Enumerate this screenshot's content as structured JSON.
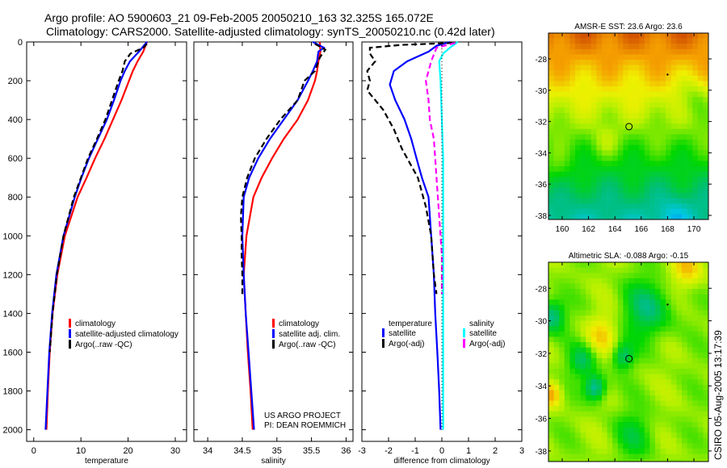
{
  "title_line1": "Argo profile: AO 5900603_21 09-Feb-2005 20050210_163 32.325S 165.072E",
  "title_line2": "Climatology: CARS2000. Satellite-adjusted climatology: synTS_20050210.nc (0.42d later)",
  "side_label": "CSIRO 05-Aug-2005 13:17:39",
  "colors": {
    "climatology": "#ff0000",
    "satellite": "#0000ff",
    "argo": "#000000",
    "sal_satellite": "#00ffff",
    "sal_argo": "#ff00ff"
  },
  "chart_data": [
    {
      "type": "line",
      "xlabel": "temperature",
      "xlim": [
        -1.5,
        32.4
      ],
      "ylim": [
        0,
        2060
      ],
      "y_reversed": true,
      "xticks": [
        "0",
        "10",
        "20",
        "30"
      ],
      "xtick_values": [
        0,
        10,
        20,
        30
      ],
      "yticks": [
        "0",
        "200",
        "400",
        "600",
        "800",
        "1000",
        "1200",
        "1400",
        "1600",
        "1800",
        "2000"
      ],
      "ytick_values": [
        0,
        200,
        400,
        600,
        800,
        1000,
        1200,
        1400,
        1600,
        1800,
        2000
      ],
      "legend": [
        "climatology",
        "satellite-adjusted climatology",
        "Argo(..raw -QC)"
      ],
      "series": [
        {
          "name": "climatology",
          "style": "solid",
          "color": "#ff0000",
          "depth": [
            0,
            50,
            100,
            150,
            200,
            300,
            400,
            500,
            600,
            700,
            800,
            1000,
            1200,
            1400,
            1600,
            1800,
            2000
          ],
          "values": [
            24,
            23.2,
            22,
            21,
            20.2,
            18.6,
            16.8,
            15,
            13,
            11.2,
            9.3,
            6.6,
            5,
            4,
            3.4,
            3,
            2.7
          ]
        },
        {
          "name": "satellite-adjusted climatology",
          "style": "solid",
          "color": "#0000ff",
          "depth": [
            0,
            50,
            100,
            150,
            200,
            300,
            400,
            500,
            600,
            700,
            800,
            1000,
            1200,
            1400,
            1600,
            1800,
            2000
          ],
          "values": [
            24,
            22.3,
            20.4,
            19.3,
            18.4,
            17,
            15.5,
            13.6,
            11.7,
            10.1,
            8.7,
            6.3,
            4.8,
            3.9,
            3.3,
            2.9,
            2.5
          ]
        },
        {
          "name": "Argo(..raw -QC)",
          "style": "dashed",
          "color": "#000000",
          "depth": [
            10,
            30,
            60,
            100,
            150,
            200,
            300,
            400,
            500,
            600,
            700,
            800,
            1000,
            1200,
            1400,
            1600
          ],
          "values": [
            24,
            23.2,
            20.5,
            19.3,
            18.8,
            18,
            16.6,
            15.2,
            13.4,
            11.5,
            10,
            8.5,
            6.3,
            4.9,
            4,
            3.4
          ]
        }
      ]
    },
    {
      "type": "line",
      "xlabel": "salinity",
      "xlim": [
        33.8,
        36.1
      ],
      "ylim": [
        0,
        2060
      ],
      "y_reversed": true,
      "xticks": [
        "34",
        "34.5",
        "35",
        "35.5",
        "36"
      ],
      "xtick_values": [
        34,
        34.5,
        35,
        35.5,
        36
      ],
      "legend": [
        "climatology",
        "satellite adj. clim.",
        "Argo(..raw -QC)"
      ],
      "annotation": [
        "US ARGO PROJECT",
        "PI: DEAN ROEMMICH"
      ],
      "series": [
        {
          "name": "climatology",
          "style": "solid",
          "color": "#ff0000",
          "depth": [
            0,
            50,
            100,
            150,
            200,
            300,
            400,
            500,
            600,
            700,
            800,
            1000,
            1200,
            1400,
            1600,
            1800,
            2000
          ],
          "values": [
            35.62,
            35.63,
            35.6,
            35.58,
            35.55,
            35.45,
            35.3,
            35.1,
            34.93,
            34.78,
            34.66,
            34.56,
            34.52,
            34.55,
            34.58,
            34.62,
            34.65
          ]
        },
        {
          "name": "satellite adj. clim.",
          "style": "solid",
          "color": "#0000ff",
          "depth": [
            0,
            30,
            50,
            100,
            150,
            200,
            300,
            400,
            500,
            600,
            700,
            800,
            1000,
            1200,
            1400,
            1600,
            1800,
            2000
          ],
          "values": [
            35.52,
            35.68,
            35.6,
            35.58,
            35.52,
            35.45,
            35.3,
            35.1,
            34.9,
            34.73,
            34.6,
            34.52,
            34.5,
            34.52,
            34.55,
            34.59,
            34.63,
            34.67
          ]
        },
        {
          "name": "Argo(..raw -QC)",
          "style": "dashed",
          "color": "#000000",
          "depth": [
            10,
            40,
            80,
            150,
            200,
            300,
            400,
            500,
            600,
            700,
            800,
            900,
            1000,
            1100,
            1200,
            1300
          ],
          "values": [
            35.55,
            35.7,
            35.62,
            35.55,
            35.4,
            35.3,
            35.05,
            34.85,
            34.68,
            34.57,
            34.5,
            34.48,
            34.49,
            34.49,
            34.5,
            34.5
          ]
        }
      ]
    },
    {
      "type": "line",
      "xlabel": "difference from climatology",
      "xlim": [
        -3,
        3
      ],
      "ylim": [
        0,
        2060
      ],
      "y_reversed": true,
      "xticks": [
        "-3",
        "-2",
        "-1",
        "0",
        "1",
        "2",
        "3"
      ],
      "xtick_values": [
        -3,
        -2,
        -1,
        0,
        1,
        2,
        3
      ],
      "legend_temperature": {
        "heading": "temperature",
        "items": [
          "satellite",
          "Argo(-adj)"
        ]
      },
      "legend_salinity": {
        "heading": "salinity",
        "items": [
          "satellite",
          "Argo(-adj)"
        ]
      },
      "series": [
        {
          "name": "temperature satellite",
          "style": "solid",
          "color": "#0000ff",
          "depth": [
            0,
            20,
            50,
            100,
            150,
            220,
            300,
            400,
            500,
            600,
            700,
            800,
            1000,
            1200,
            1400,
            1600,
            1800,
            2000
          ],
          "values": [
            0.3,
            -0.2,
            -0.5,
            -1.3,
            -1.8,
            -1.95,
            -1.75,
            -1.4,
            -1.15,
            -0.95,
            -0.75,
            -0.5,
            -0.4,
            -0.3,
            -0.25,
            -0.17,
            -0.1,
            -0.05
          ]
        },
        {
          "name": "temperature Argo(-adj)",
          "style": "dashed",
          "color": "#000000",
          "depth": [
            5,
            15,
            30,
            60,
            100,
            150,
            200,
            250,
            350,
            450,
            550,
            700,
            850,
            1000,
            1200,
            1300
          ],
          "values": [
            0.4,
            -1.5,
            -2.7,
            -2.7,
            -2.5,
            -2.8,
            -2.7,
            -2.8,
            -2.2,
            -1.8,
            -1.5,
            -0.9,
            -0.6,
            -0.4,
            -0.3,
            -0.2
          ]
        },
        {
          "name": "salinity satellite",
          "style": "solid",
          "color": "#00ffff",
          "depth": [
            0,
            30,
            60,
            100,
            200,
            400,
            600,
            800,
            1000,
            1500,
            2000
          ],
          "values": [
            0.6,
            0.3,
            0.05,
            -0.1,
            -0.05,
            0,
            0.05,
            0.05,
            0.05,
            0.05,
            0.05
          ]
        },
        {
          "name": "salinity Argo(-adj)",
          "style": "dashed",
          "color": "#ff00ff",
          "depth": [
            5,
            30,
            100,
            200,
            300,
            400,
            500,
            700,
            900,
            1100,
            1300
          ],
          "values": [
            0.5,
            -0.2,
            -0.4,
            -0.6,
            -0.5,
            -0.45,
            -0.3,
            -0.2,
            -0.1,
            0,
            0
          ]
        },
        {
          "name": "zero line",
          "style": "dotted",
          "color": "#000000",
          "depth": [
            0,
            2000
          ],
          "values": [
            0,
            0
          ]
        }
      ]
    },
    {
      "type": "heatmap",
      "title": "AMSR-E SST: 23.6 Argo: 23.6",
      "xlim": [
        158.96,
        171.1
      ],
      "ylim": [
        -38.26,
        -26.35
      ],
      "xticks": [
        "160",
        "162",
        "164",
        "166",
        "168",
        "170"
      ],
      "xtick_values": [
        160,
        162,
        164,
        166,
        168,
        170
      ],
      "yticks": [
        "-28",
        "-30",
        "-32",
        "-34",
        "-36",
        "-38"
      ],
      "ytick_values": [
        -28,
        -30,
        -32,
        -34,
        -36,
        -38
      ],
      "marker": {
        "lon": 165.072,
        "lat": -32.325
      },
      "field": "sst"
    },
    {
      "type": "heatmap",
      "title": "Altimetric SLA: -0.088 Argo: -0.15",
      "xlim": [
        158.96,
        171.1
      ],
      "ylim": [
        -38.65,
        -26.4
      ],
      "xticks": [
        "160",
        "162",
        "164",
        "166",
        "168",
        "170"
      ],
      "xtick_values": [
        160,
        162,
        164,
        166,
        168,
        170
      ],
      "yticks": [
        "-28",
        "-30",
        "-32",
        "-34",
        "-36",
        "-38"
      ],
      "ytick_values": [
        -28,
        -30,
        -32,
        -34,
        -36,
        -38
      ],
      "marker": {
        "lon": 165.072,
        "lat": -32.325
      },
      "field": "sla"
    }
  ]
}
